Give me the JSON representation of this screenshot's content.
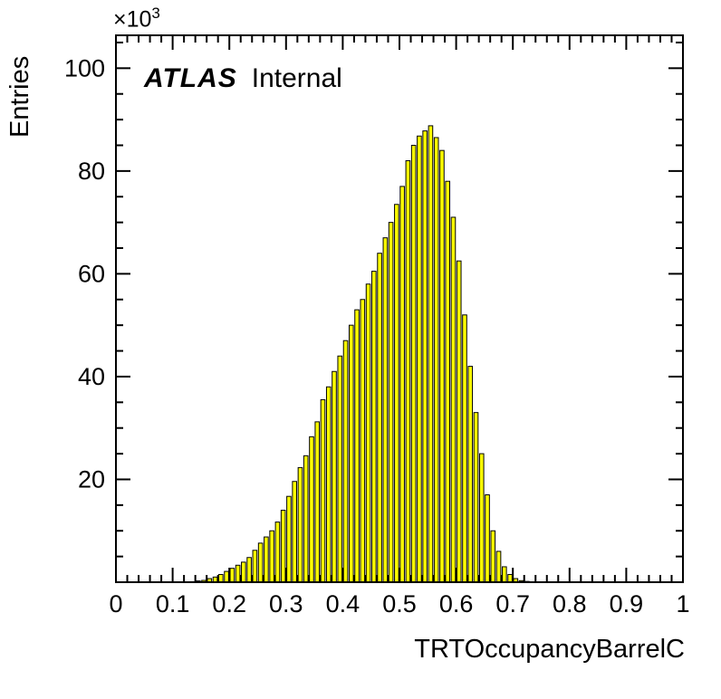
{
  "annotations": {
    "atlas": "ATLAS",
    "internal": "Internal"
  },
  "colors": {
    "background": "#ffffff",
    "bar_fill": "#ffff00",
    "bar_stroke": "#000000",
    "axis": "#000000",
    "text": "#000000"
  },
  "chart_data": {
    "type": "bar",
    "title": "",
    "xlabel": "TRTOccupancyBarrelC",
    "ylabel": "Entries",
    "y_multiplier_base": "×10",
    "y_multiplier_exponent": "3",
    "xlim": [
      0,
      1
    ],
    "ylim": [
      0,
      106.4
    ],
    "y_units": "thousands of entries",
    "grid": "off",
    "legend": "none",
    "x_major_ticks": [
      0,
      0.1,
      0.2,
      0.3,
      0.4,
      0.5,
      0.6,
      0.7,
      0.8,
      0.9,
      1
    ],
    "x_tick_labels": [
      "0",
      "0.1",
      "0.2",
      "0.3",
      "0.4",
      "0.5",
      "0.6",
      "0.7",
      "0.8",
      "0.9",
      "1"
    ],
    "x_minor_step": 0.02,
    "y_major_ticks": [
      20,
      40,
      60,
      80,
      100
    ],
    "y_tick_labels": [
      "20",
      "40",
      "60",
      "80",
      "100"
    ],
    "y_minor_step": 5,
    "bin_width": 0.01,
    "bin_left_edges": [
      0.13,
      0.14,
      0.15,
      0.16,
      0.17,
      0.18,
      0.19,
      0.2,
      0.21,
      0.22,
      0.23,
      0.24,
      0.25,
      0.26,
      0.27,
      0.28,
      0.29,
      0.3,
      0.31,
      0.32,
      0.33,
      0.34,
      0.35,
      0.36,
      0.37,
      0.38,
      0.39,
      0.4,
      0.41,
      0.42,
      0.43,
      0.44,
      0.45,
      0.46,
      0.47,
      0.48,
      0.49,
      0.5,
      0.51,
      0.52,
      0.53,
      0.54,
      0.55,
      0.56,
      0.57,
      0.58,
      0.59,
      0.6,
      0.61,
      0.62,
      0.63,
      0.64,
      0.65,
      0.66,
      0.67,
      0.68,
      0.69,
      0.7,
      0.71,
      0.72
    ],
    "values_thousands": [
      0.1,
      0.25,
      0.35,
      0.7,
      1.0,
      1.5,
      2.1,
      2.7,
      3.3,
      3.9,
      4.8,
      6.2,
      7.6,
      8.8,
      10.0,
      11.7,
      14.0,
      16.7,
      19.6,
      22.3,
      24.6,
      28.3,
      31.2,
      35.5,
      38.0,
      41.0,
      44.0,
      47.0,
      50.0,
      53.0,
      55.0,
      58.0,
      60.5,
      64.0,
      67.0,
      70.0,
      73.5,
      77.0,
      82.0,
      85.0,
      86.8,
      87.8,
      88.8,
      86.5,
      84.0,
      78.0,
      71.0,
      62.5,
      52.0,
      42.0,
      33.0,
      25.0,
      17.0,
      10.0,
      6.0,
      3.0,
      1.5,
      0.7,
      0.3,
      0.15
    ]
  }
}
